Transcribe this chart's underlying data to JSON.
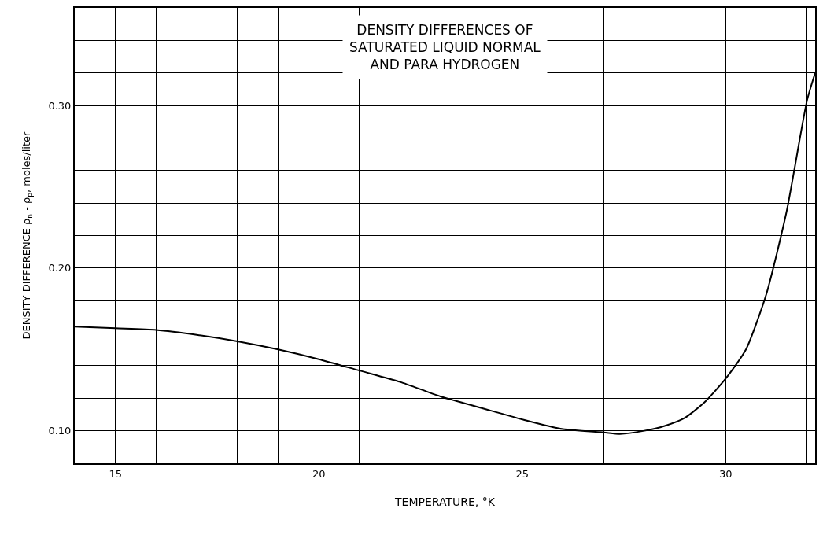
{
  "chart_data": {
    "type": "line",
    "title": "DENSITY DIFFERENCES OF\nSATURATED LIQUID NORMAL\nAND PARA HYDROGEN",
    "xlabel": "TEMPERATURE, °K",
    "ylabel": "DENSITY DIFFERENCE ρ$_{n}$ - ρ$_{p}$, moles/liter",
    "x": [
      14,
      15,
      16,
      17,
      18,
      19,
      20,
      21,
      22,
      23,
      24,
      25,
      26,
      27,
      27.4,
      28,
      28.5,
      29,
      29.5,
      30,
      30.5,
      31,
      31.5,
      32,
      32.2
    ],
    "series": [
      {
        "color": "#000000",
        "values": [
          0.164,
          0.163,
          0.162,
          0.159,
          0.155,
          0.15,
          0.144,
          0.137,
          0.13,
          0.121,
          0.114,
          0.107,
          0.101,
          0.099,
          0.098,
          0.1,
          0.103,
          0.108,
          0.118,
          0.132,
          0.15,
          0.184,
          0.235,
          0.303,
          0.32
        ]
      }
    ],
    "xlim": [
      14,
      32.2
    ],
    "ylim": [
      0.08,
      0.36
    ],
    "xticks": [
      {
        "value": 14,
        "label": null
      },
      15,
      {
        "value": 16,
        "label": null
      },
      {
        "value": 17,
        "label": null
      },
      {
        "value": 18,
        "label": null
      },
      {
        "value": 19,
        "label": null
      },
      20,
      {
        "value": 21,
        "label": null
      },
      {
        "value": 22,
        "label": null
      },
      {
        "value": 23,
        "label": null
      },
      {
        "value": 24,
        "label": null
      },
      25,
      {
        "value": 26,
        "label": null
      },
      {
        "value": 27,
        "label": null
      },
      {
        "value": 28,
        "label": null
      },
      {
        "value": 29,
        "label": null
      },
      30,
      {
        "value": 31,
        "label": null
      },
      {
        "value": 32,
        "label": null
      }
    ],
    "yticks": [
      {
        "value": 0.08,
        "label": null
      },
      {
        "value": 0.1,
        "label": "0.10"
      },
      {
        "value": 0.12,
        "label": null
      },
      {
        "value": 0.14,
        "label": null
      },
      {
        "value": 0.16,
        "label": null
      },
      {
        "value": 0.18,
        "label": null
      },
      {
        "value": 0.2,
        "label": "0.20"
      },
      {
        "value": 0.22,
        "label": null
      },
      {
        "value": 0.24,
        "label": null
      },
      {
        "value": 0.26,
        "label": null
      },
      {
        "value": 0.28,
        "label": null
      },
      {
        "value": 0.3,
        "label": "0.30"
      },
      {
        "value": 0.32,
        "label": null
      },
      {
        "value": 0.34,
        "label": null
      },
      {
        "value": 0.36,
        "label": null
      }
    ],
    "grid": true,
    "line_style": "solid",
    "marker": "none"
  }
}
